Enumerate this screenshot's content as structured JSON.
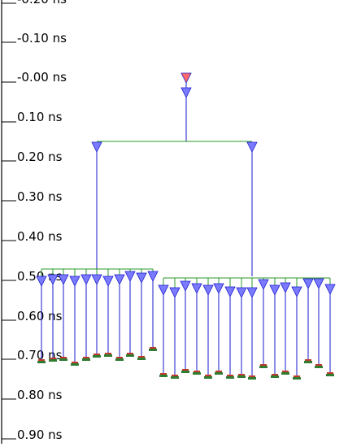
{
  "axis": {
    "ticks": [
      "-0.20 ns",
      "-0.10 ns",
      "-0.00 ns",
      "0.10 ns",
      "0.20 ns",
      "0.30 ns",
      "0.40 ns",
      "0.50 ns",
      "0.60 ns",
      "0.70 ns",
      "0.80 ns",
      "0.90 ns"
    ]
  },
  "colors": {
    "root_buffer": "#ff6b6b",
    "buffer": "#7b7bff",
    "wire_vertical": "#1a1acc",
    "wire_horizontal": "#2a9a2a",
    "sink_top": "#c0392b",
    "sink_base": "#2e7d32",
    "axis_line": "#000000"
  }
}
